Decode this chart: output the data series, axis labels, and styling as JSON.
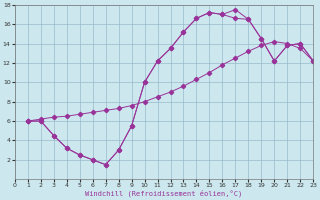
{
  "xlabel": "Windchill (Refroidissement éolien,°C)",
  "bg_color": "#cce8ee",
  "line_color": "#993399",
  "grid_color": "#99bbcc",
  "xlim": [
    0,
    23
  ],
  "ylim": [
    0,
    18
  ],
  "yticks": [
    2,
    4,
    6,
    8,
    10,
    12,
    14,
    16,
    18
  ],
  "xticks": [
    0,
    1,
    2,
    3,
    4,
    5,
    6,
    7,
    8,
    9,
    10,
    11,
    12,
    13,
    14,
    15,
    16,
    17,
    18,
    19,
    20,
    21,
    22,
    23
  ],
  "line_upper_x": [
    1,
    2,
    3,
    4,
    5,
    6,
    7,
    8,
    9,
    10,
    11,
    12,
    13,
    14,
    15,
    16,
    17,
    18,
    19,
    20,
    21,
    22,
    23
  ],
  "line_upper_y": [
    6.0,
    6.2,
    6.4,
    6.5,
    6.7,
    6.9,
    7.1,
    7.3,
    7.6,
    8.0,
    8.5,
    9.0,
    9.6,
    10.3,
    11.0,
    11.8,
    12.5,
    13.2,
    13.8,
    14.2,
    14.0,
    13.5,
    12.2
  ],
  "line_peak_x": [
    1,
    2,
    3,
    4,
    5,
    6,
    7,
    8,
    9,
    10,
    11,
    12,
    13,
    14,
    15,
    16,
    17,
    18,
    19,
    20,
    21,
    22,
    23
  ],
  "line_peak_y": [
    6.0,
    6.0,
    4.5,
    3.2,
    2.5,
    2.0,
    1.5,
    3.0,
    5.5,
    10.0,
    12.2,
    13.5,
    15.2,
    16.6,
    17.2,
    17.0,
    16.6,
    16.5,
    14.5,
    12.2,
    13.8,
    14.0,
    12.2
  ],
  "line_low_x": [
    1,
    2,
    3,
    4,
    5,
    6,
    7,
    8,
    9,
    10,
    11,
    12,
    13,
    14,
    15,
    16,
    17,
    18,
    19,
    20,
    21,
    22,
    23
  ],
  "line_low_y": [
    6.0,
    6.0,
    4.5,
    3.2,
    2.5,
    2.0,
    1.5,
    3.0,
    5.5,
    10.0,
    12.2,
    13.5,
    15.2,
    16.6,
    17.2,
    17.0,
    17.5,
    16.5,
    14.5,
    12.2,
    13.8,
    14.0,
    12.2
  ]
}
